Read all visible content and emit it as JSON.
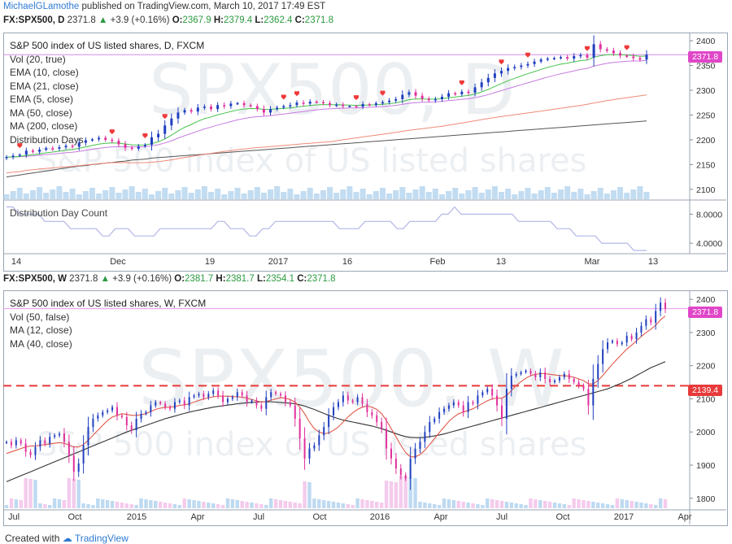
{
  "header": {
    "author": "MichaelGLamothe",
    "published_text": "published on TradingView.com, March 10, 2017 17:49 EST"
  },
  "daily": {
    "symbol": "FX:SPX500, D",
    "last": "2371.8",
    "change": "+3.9 (+0.16%)",
    "o_label": "O:",
    "o": "2367.9",
    "h_label": "H:",
    "h": "2379.4",
    "l_label": "L:",
    "l": "2362.4",
    "c_label": "C:",
    "c": "2371.8",
    "legend": [
      "S&P 500 index of US listed shares, D, FXCM",
      "Vol (20, true)",
      "EMA (10, close)",
      "EMA (21, close)",
      "EMA (5, close)",
      "MA (50, close)",
      "MA (200, close)",
      "Distribution Days"
    ],
    "watermark_big": "SPX500, D",
    "watermark_small": "S&P 500 index of US listed shares",
    "price_tag": "2371.8",
    "sub_title": "Distribution Day Count",
    "x_ticks": [
      "14",
      "Dec",
      "19",
      "2017",
      "16",
      "Feb",
      "13",
      "Mar",
      "13"
    ]
  },
  "weekly": {
    "symbol": "FX:SPX500, W",
    "last": "2371.8",
    "change": "+3.9 (+0.16%)",
    "o_label": "O:",
    "o": "2381.7",
    "h_label": "H:",
    "h": "2381.7",
    "l_label": "L:",
    "l": "2354.1",
    "c_label": "C:",
    "c": "2371.8",
    "legend": [
      "S&P 500 index of US listed shares, W, FXCM",
      "Vol (50, false)",
      "MA (12, close)",
      "MA (40, close)"
    ],
    "watermark_big": "SPX500, W",
    "watermark_small": "S&P 500 index of US listed shares",
    "price_tag": "2371.8",
    "line_tag": "2139.4",
    "x_ticks": [
      "Jul",
      "Oct",
      "2015",
      "Apr",
      "Jul",
      "Oct",
      "2016",
      "Apr",
      "Jul",
      "Oct",
      "2017",
      "Apr"
    ]
  },
  "footer": {
    "created_with": "Created with",
    "brand": "TradingView"
  },
  "colors": {
    "up": "#1f3fbf",
    "down": "#e0309c",
    "ema10": "#46c34a",
    "ema21": "#c77be0",
    "ma50": "#f08a7a",
    "ma200": "#555555",
    "dist_marker": "#ef3b3b",
    "hline": "#e83a3a",
    "tag_bg": "#e046c8",
    "ddc": "#b1b6e6",
    "volume": "#b3d3ee"
  },
  "chart_data": [
    {
      "type": "line",
      "title": "S&P 500 index of US listed shares, D, FXCM",
      "ylim": [
        2080,
        2410
      ],
      "y_ticks": [
        2100,
        2150,
        2200,
        2250,
        2300,
        2350,
        2400
      ],
      "last_price": 2371.8,
      "series": [
        {
          "name": "S&P 500 index of US listed shares, D, FXCM",
          "values": [
            2165,
            2168,
            2170,
            2178,
            2176,
            2180,
            2183,
            2182,
            2185,
            2188,
            2186,
            2194,
            2199,
            2201,
            2204,
            2200,
            2198,
            2191,
            2184,
            2182,
            2187,
            2190,
            2205,
            2212,
            2229,
            2243,
            2255,
            2260,
            2257,
            2265,
            2267,
            2262,
            2270,
            2268,
            2273,
            2274,
            2270,
            2268,
            2262,
            2255,
            2262,
            2265,
            2268,
            2270,
            2275,
            2273,
            2277,
            2276,
            2274,
            2270,
            2271,
            2268,
            2268,
            2267,
            2272,
            2270,
            2274,
            2276,
            2279,
            2282,
            2291,
            2296,
            2289,
            2283,
            2280,
            2282,
            2287,
            2294,
            2292,
            2297,
            2295,
            2306,
            2316,
            2325,
            2334,
            2339,
            2345,
            2347,
            2350,
            2353,
            2358,
            2362,
            2364,
            2365,
            2367,
            2364,
            2369,
            2371,
            2366,
            2393,
            2383,
            2380,
            2375,
            2370,
            2368,
            2365,
            2362,
            2371.8
          ]
        },
        {
          "name": "MA (200, close)",
          "values": [
            2125,
            2127,
            2129,
            2131,
            2133,
            2135,
            2137,
            2139,
            2141,
            2143,
            2145,
            2147,
            2148,
            2150,
            2151,
            2153,
            2154,
            2156,
            2157,
            2159,
            2160,
            2161,
            2163,
            2164,
            2165,
            2166,
            2167,
            2168,
            2169,
            2170,
            2171,
            2172,
            2173,
            2174,
            2175,
            2176,
            2177,
            2178,
            2179,
            2180,
            2181,
            2182,
            2183,
            2184,
            2185,
            2186,
            2187,
            2188,
            2189,
            2190,
            2191,
            2192,
            2193,
            2194,
            2195,
            2196,
            2197,
            2198,
            2199,
            2200,
            2201,
            2202,
            2203,
            2204,
            2205,
            2206,
            2207,
            2208,
            2209,
            2210,
            2211,
            2212,
            2213,
            2214,
            2215,
            2216,
            2217,
            2218,
            2219,
            2220,
            2221,
            2222,
            2223,
            2224,
            2225,
            2226,
            2227,
            2228,
            2229,
            2230,
            2231,
            2232,
            2233,
            2234,
            2235,
            2236,
            2237,
            2238
          ]
        }
      ]
    },
    {
      "type": "line",
      "title": "Distribution Day Count",
      "ylim": [
        3,
        9.5
      ],
      "y_ticks": [
        "4.0000",
        "8.0000"
      ],
      "series": [
        {
          "name": "Distribution Day Count",
          "values": [
            9,
            9,
            8,
            8,
            8,
            8,
            7,
            7,
            7,
            7,
            6,
            6,
            6,
            6,
            6,
            5,
            5,
            6,
            6,
            6,
            5,
            5,
            5,
            5,
            6,
            6,
            6,
            6,
            6,
            6,
            6,
            6,
            6,
            7,
            7,
            6,
            6,
            6,
            5,
            5,
            6,
            6,
            7,
            7,
            7,
            7,
            7,
            7,
            7,
            7,
            7,
            7,
            6,
            6,
            6,
            6,
            7,
            7,
            7,
            7,
            7,
            6,
            6,
            7,
            7,
            7,
            7,
            7,
            8,
            8,
            9,
            8,
            8,
            8,
            8,
            8,
            8,
            8,
            8,
            8,
            7,
            7,
            7,
            7,
            7,
            7,
            6,
            6,
            6,
            5,
            5,
            5,
            5,
            4,
            4,
            4,
            4,
            4,
            3,
            3,
            3
          ]
        }
      ]
    },
    {
      "type": "line",
      "title": "S&P 500 index of US listed shares, W, FXCM",
      "ylim": [
        1770,
        2420
      ],
      "y_ticks": [
        1800,
        1900,
        2000,
        2100,
        2200,
        2300,
        2400
      ],
      "last_price": 2371.8,
      "hline": 2139.4,
      "series": [
        {
          "name": "S&P 500 index of US listed shares, W, FXCM",
          "values": [
            1970,
            1960,
            1975,
            1965,
            1940,
            1930,
            1955,
            1975,
            1965,
            1985,
            1990,
            1995,
            1970,
            1930,
            1880,
            1905,
            1960,
            2015,
            2040,
            2050,
            2060,
            2065,
            2075,
            2050,
            2045,
            2020,
            2005,
            2040,
            2055,
            2060,
            2080,
            2090,
            2085,
            2075,
            2070,
            2090,
            2095,
            2080,
            2105,
            2110,
            2115,
            2105,
            2115,
            2125,
            2110,
            2090,
            2100,
            2105,
            2120,
            2110,
            2090,
            2095,
            2080,
            2070,
            2105,
            2120,
            2115,
            2110,
            2090,
            2080,
            2040,
            1980,
            1920,
            1950,
            1960,
            1990,
            2015,
            2050,
            2075,
            2090,
            2110,
            2095,
            2090,
            2105,
            2085,
            2060,
            2050,
            2030,
            2010,
            1950,
            1920,
            1890,
            1870,
            1860,
            1920,
            1950,
            1970,
            2000,
            2030,
            2040,
            2060,
            2070,
            2080,
            2090,
            2080,
            2060,
            2090,
            2085,
            2110,
            2120,
            2130,
            2110,
            2080,
            2040,
            2130,
            2170,
            2175,
            2180,
            2185,
            2175,
            2165,
            2180,
            2160,
            2150,
            2155,
            2165,
            2175,
            2160,
            2150,
            2140,
            2130,
            2080,
            2160,
            2205,
            2250,
            2270,
            2275,
            2265,
            2270,
            2290,
            2280,
            2300,
            2320,
            2340,
            2330,
            2365,
            2390,
            2371.8
          ]
        },
        {
          "name": "MA (12, close)",
          "values": [
            1935,
            1940,
            1945,
            1950,
            1955,
            1958,
            1958,
            1960,
            1962,
            1964,
            1966,
            1968,
            1966,
            1960,
            1955,
            1955,
            1962,
            1975,
            1990,
            2005,
            2020,
            2035,
            2045,
            2050,
            2055,
            2053,
            2050,
            2050,
            2052,
            2055,
            2062,
            2068,
            2072,
            2074,
            2075,
            2077,
            2080,
            2082,
            2085,
            2090,
            2095,
            2100,
            2103,
            2106,
            2108,
            2108,
            2108,
            2107,
            2106,
            2105,
            2102,
            2098,
            2094,
            2090,
            2092,
            2096,
            2100,
            2103,
            2102,
            2098,
            2090,
            2075,
            2055,
            2030,
            2010,
            2000,
            1995,
            1997,
            2005,
            2015,
            2030,
            2045,
            2058,
            2068,
            2075,
            2078,
            2075,
            2068,
            2055,
            2035,
            2010,
            1985,
            1960,
            1938,
            1925,
            1925,
            1932,
            1945,
            1962,
            1980,
            1998,
            2015,
            2032,
            2045,
            2055,
            2060,
            2065,
            2070,
            2078,
            2086,
            2094,
            2100,
            2102,
            2102,
            2110,
            2125,
            2140,
            2152,
            2162,
            2170,
            2174,
            2176,
            2176,
            2174,
            2172,
            2170,
            2170,
            2168,
            2165,
            2160,
            2155,
            2145,
            2145,
            2155,
            2170,
            2188,
            2205,
            2220,
            2235,
            2250,
            2262,
            2275,
            2288,
            2300,
            2310,
            2322,
            2338,
            2350
          ]
        },
        {
          "name": "MA (40, close)",
          "values": [
            1850,
            1856,
            1862,
            1868,
            1874,
            1880,
            1886,
            1892,
            1898,
            1904,
            1910,
            1916,
            1922,
            1928,
            1934,
            1940,
            1946,
            1952,
            1958,
            1964,
            1970,
            1976,
            1982,
            1988,
            1994,
            2000,
            2005,
            2010,
            2015,
            2020,
            2025,
            2030,
            2035,
            2040,
            2044,
            2048,
            2052,
            2056,
            2060,
            2063,
            2066,
            2069,
            2072,
            2075,
            2077,
            2079,
            2081,
            2083,
            2085,
            2087,
            2088,
            2089,
            2090,
            2091,
            2091,
            2091,
            2090,
            2089,
            2088,
            2087,
            2085,
            2082,
            2078,
            2073,
            2068,
            2062,
            2056,
            2050,
            2045,
            2040,
            2036,
            2033,
            2030,
            2027,
            2024,
            2021,
            2018,
            2014,
            2010,
            2005,
            2000,
            1995,
            1990,
            1986,
            1984,
            1983,
            1983,
            1984,
            1986,
            1988,
            1991,
            1994,
            1998,
            2002,
            2006,
            2010,
            2014,
            2018,
            2022,
            2026,
            2030,
            2034,
            2038,
            2042,
            2046,
            2050,
            2054,
            2058,
            2062,
            2066,
            2070,
            2074,
            2078,
            2082,
            2086,
            2090,
            2094,
            2098,
            2102,
            2106,
            2110,
            2114,
            2118,
            2122,
            2126,
            2130,
            2136,
            2142,
            2148,
            2155,
            2162,
            2170,
            2178,
            2186,
            2194,
            2200,
            2206,
            2212
          ]
        }
      ]
    }
  ]
}
